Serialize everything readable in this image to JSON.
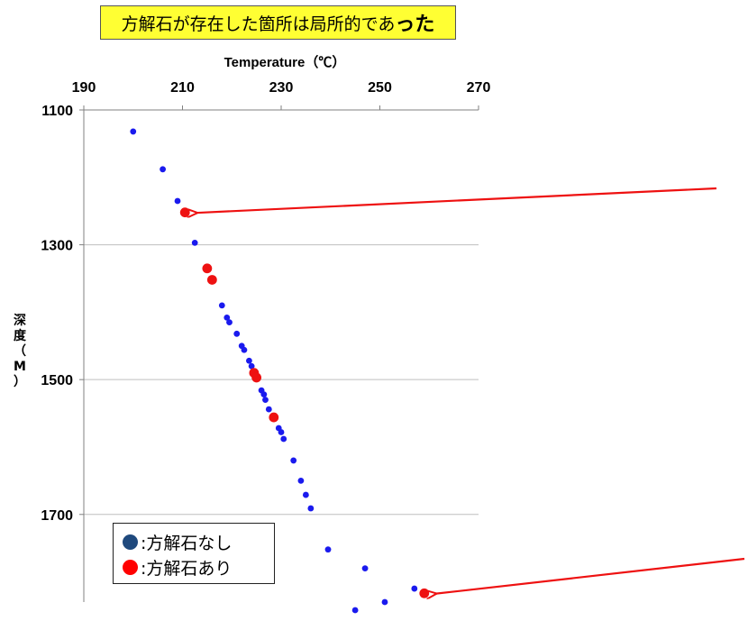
{
  "title": {
    "main": "方解石が存在した箇所は局所的であ",
    "tail": "った"
  },
  "chart_data": {
    "type": "scatter",
    "xlabel": "Temperature（℃）",
    "ylabel": "深度（M）",
    "x_axis_position": "top",
    "y_inverted": true,
    "xlim": [
      190,
      270
    ],
    "ylim": [
      1100,
      1830
    ],
    "x_ticks": [
      "190",
      "210",
      "230",
      "250",
      "270"
    ],
    "y_ticks": [
      "1100",
      "1300",
      "1500",
      "1700"
    ],
    "gridlines": "horizontal",
    "legend_position": "bottom-left",
    "series": [
      {
        "name": ":方解石なし",
        "color": "#1a1aee",
        "points": [
          [
            200,
            1132
          ],
          [
            206,
            1188
          ],
          [
            209,
            1235
          ],
          [
            212.5,
            1297
          ],
          [
            218,
            1390
          ],
          [
            219,
            1408
          ],
          [
            219.5,
            1415
          ],
          [
            221,
            1432
          ],
          [
            222,
            1450
          ],
          [
            222.5,
            1456
          ],
          [
            223.5,
            1472
          ],
          [
            224,
            1480
          ],
          [
            224.5,
            1488
          ],
          [
            226,
            1516
          ],
          [
            226.5,
            1522
          ],
          [
            226.8,
            1530
          ],
          [
            227.5,
            1544
          ],
          [
            229.5,
            1572
          ],
          [
            230,
            1578
          ],
          [
            230.5,
            1588
          ],
          [
            232.5,
            1620
          ],
          [
            234,
            1650
          ],
          [
            235,
            1671
          ],
          [
            236,
            1691
          ],
          [
            239.5,
            1752
          ],
          [
            247,
            1780
          ],
          [
            245,
            1842
          ],
          [
            251,
            1830
          ],
          [
            257,
            1810
          ]
        ]
      },
      {
        "name": ":方解石あり",
        "color": "#ee1111",
        "points": [
          [
            210.5,
            1252
          ],
          [
            215,
            1335
          ],
          [
            216,
            1352
          ],
          [
            224.5,
            1490
          ],
          [
            225,
            1497
          ],
          [
            228.5,
            1556
          ],
          [
            259,
            1817
          ]
        ]
      }
    ],
    "annotations": [
      {
        "type": "arrow",
        "target": [
          210.5,
          1252
        ],
        "color": "#ee1111"
      },
      {
        "type": "arrow",
        "target": [
          259,
          1817
        ],
        "color": "#ee1111"
      }
    ]
  }
}
